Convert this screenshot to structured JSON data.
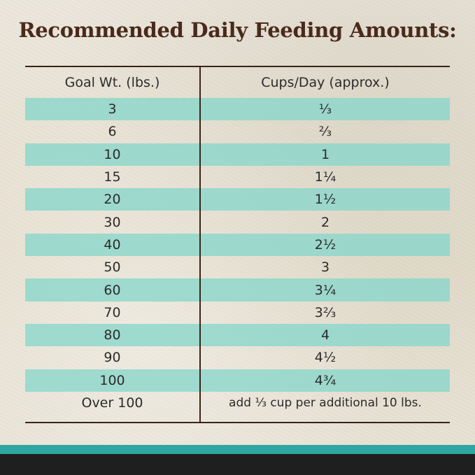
{
  "title": "Recommended Daily Feeding Amounts:",
  "columns": [
    "Goal Wt. (lbs.)",
    "Cups/Day (approx.)"
  ],
  "rows": [
    {
      "weight": "3",
      "cups": "⅓"
    },
    {
      "weight": "6",
      "cups": "⅔"
    },
    {
      "weight": "10",
      "cups": "1"
    },
    {
      "weight": "15",
      "cups": "1¼"
    },
    {
      "weight": "20",
      "cups": "1½"
    },
    {
      "weight": "30",
      "cups": "2"
    },
    {
      "weight": "40",
      "cups": "2½"
    },
    {
      "weight": "50",
      "cups": "3"
    },
    {
      "weight": "60",
      "cups": "3¼"
    },
    {
      "weight": "70",
      "cups": "3⅔"
    },
    {
      "weight": "80",
      "cups": "4"
    },
    {
      "weight": "90",
      "cups": "4½"
    },
    {
      "weight": "100",
      "cups": "4¾"
    },
    {
      "weight": "Over 100",
      "cups": "add ⅓ cup per additional 10 lbs."
    }
  ],
  "colors": {
    "title": "#4a2a1b",
    "stripe": "#88d6ca",
    "rule": "#3a2417",
    "footer_teal": "#2fa6a1",
    "footer_dark": "#1f1f1f"
  }
}
